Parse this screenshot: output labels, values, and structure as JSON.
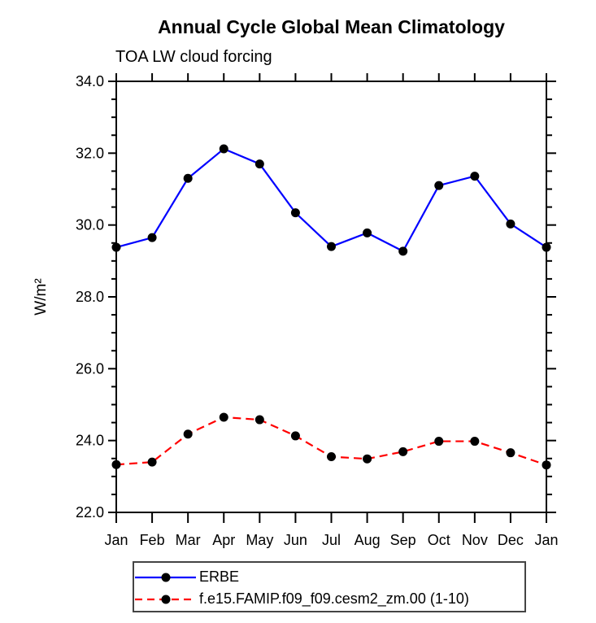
{
  "page": {
    "background": "#ffffff"
  },
  "chart_data": {
    "type": "line",
    "title": "Annual Cycle Global Mean Climatology",
    "subtitle": "TOA LW cloud forcing",
    "ylabel": "W/m²",
    "x_categories": [
      "Jan",
      "Feb",
      "Mar",
      "Apr",
      "May",
      "Jun",
      "Jul",
      "Aug",
      "Sep",
      "Oct",
      "Nov",
      "Dec",
      "Jan"
    ],
    "ylim": [
      22.0,
      34.0
    ],
    "yticks": [
      22.0,
      24.0,
      26.0,
      28.0,
      30.0,
      32.0,
      34.0
    ],
    "ytick_labels": [
      "22.0",
      "24.0",
      "26.0",
      "28.0",
      "30.0",
      "32.0",
      "34.0"
    ],
    "minor_tick_step": 0.5,
    "grid": false,
    "legend_position": "bottom",
    "axis_color": "#000000",
    "marker": "filled-circle",
    "marker_color": "#000000",
    "series": [
      {
        "name": "ERBE",
        "color": "#0000ff",
        "style": "solid",
        "values": [
          29.38,
          29.65,
          31.3,
          32.12,
          31.7,
          30.34,
          29.4,
          29.78,
          29.27,
          31.1,
          31.36,
          30.03,
          29.38
        ]
      },
      {
        "name": "f.e15.FAMIP.f09_f09.cesm2_zm.00 (1-10)",
        "color": "#ff0000",
        "style": "dashed",
        "values": [
          23.33,
          23.4,
          24.18,
          24.65,
          24.58,
          24.13,
          23.55,
          23.49,
          23.69,
          23.98,
          23.98,
          23.66,
          23.32
        ]
      }
    ]
  }
}
